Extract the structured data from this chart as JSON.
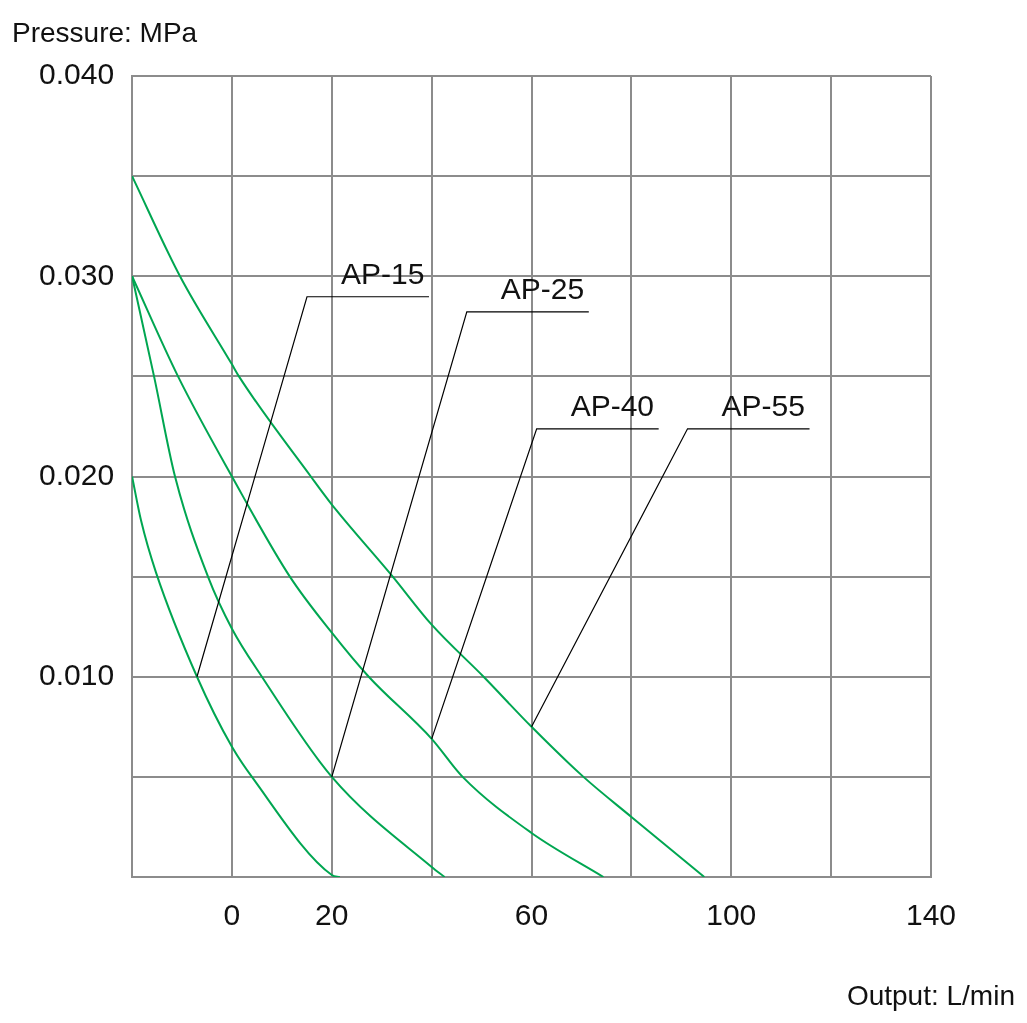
{
  "chart_data": {
    "type": "line",
    "ylabel": "Pressure: MPa",
    "xlabel": "Output: L/min",
    "xlim": [
      -20,
      140
    ],
    "xticks": [
      {
        "value": -20,
        "label": null
      },
      0,
      20,
      {
        "value": 40,
        "label": null
      },
      60,
      {
        "value": 80,
        "label": null
      },
      100,
      {
        "value": 120,
        "label": null
      },
      140
    ],
    "ylim": [
      0,
      0.04
    ],
    "yticks": [
      {
        "value": 0,
        "label": null
      },
      {
        "value": 0.005,
        "label": null
      },
      {
        "value": 0.01,
        "label": "0.010"
      },
      {
        "value": 0.015,
        "label": null
      },
      {
        "value": 0.02,
        "label": "0.020"
      },
      {
        "value": 0.025,
        "label": null
      },
      {
        "value": 0.03,
        "label": "0.030"
      },
      {
        "value": 0.035,
        "label": null
      },
      {
        "value": 0.04,
        "label": "0.040"
      }
    ],
    "grid": true,
    "marker": "none",
    "legend": false,
    "series": [
      {
        "name": "AP-15",
        "color": "#00a651",
        "x": [
          -20,
          -18.2,
          -15.2,
          -7,
          0,
          4,
          20,
          21.6
        ],
        "values": [
          0.02,
          0.0178,
          0.0152,
          0.01,
          0.0065,
          0.005,
          0.0001,
          0
        ]
      },
      {
        "name": "AP-25",
        "color": "#00a651",
        "x": [
          -20,
          -15.6,
          -11.4,
          -4.8,
          0,
          6,
          20,
          40,
          42.6
        ],
        "values": [
          0.03,
          0.025,
          0.02,
          0.015,
          0.0124,
          0.01,
          0.005,
          0.0005,
          0
        ]
      },
      {
        "name": "AP-40",
        "color": "#00a651",
        "x": [
          -20,
          -10.8,
          0,
          11.6,
          20,
          27.4,
          40,
          46.2,
          60,
          74.4
        ],
        "values": [
          0.03,
          0.025,
          0.02,
          0.015,
          0.0122,
          0.01,
          0.0069,
          0.005,
          0.0022,
          0
        ]
      },
      {
        "name": "AP-55",
        "color": "#00a651",
        "x": [
          -20,
          -10.4,
          0,
          1.4,
          15.8,
          20,
          32.2,
          40,
          50.4,
          60,
          70.4,
          80,
          94.6
        ],
        "values": [
          0.035,
          0.03,
          0.0256,
          0.025,
          0.02,
          0.0186,
          0.015,
          0.0126,
          0.01,
          0.0075,
          0.005,
          0.003,
          0
        ]
      }
    ]
  }
}
